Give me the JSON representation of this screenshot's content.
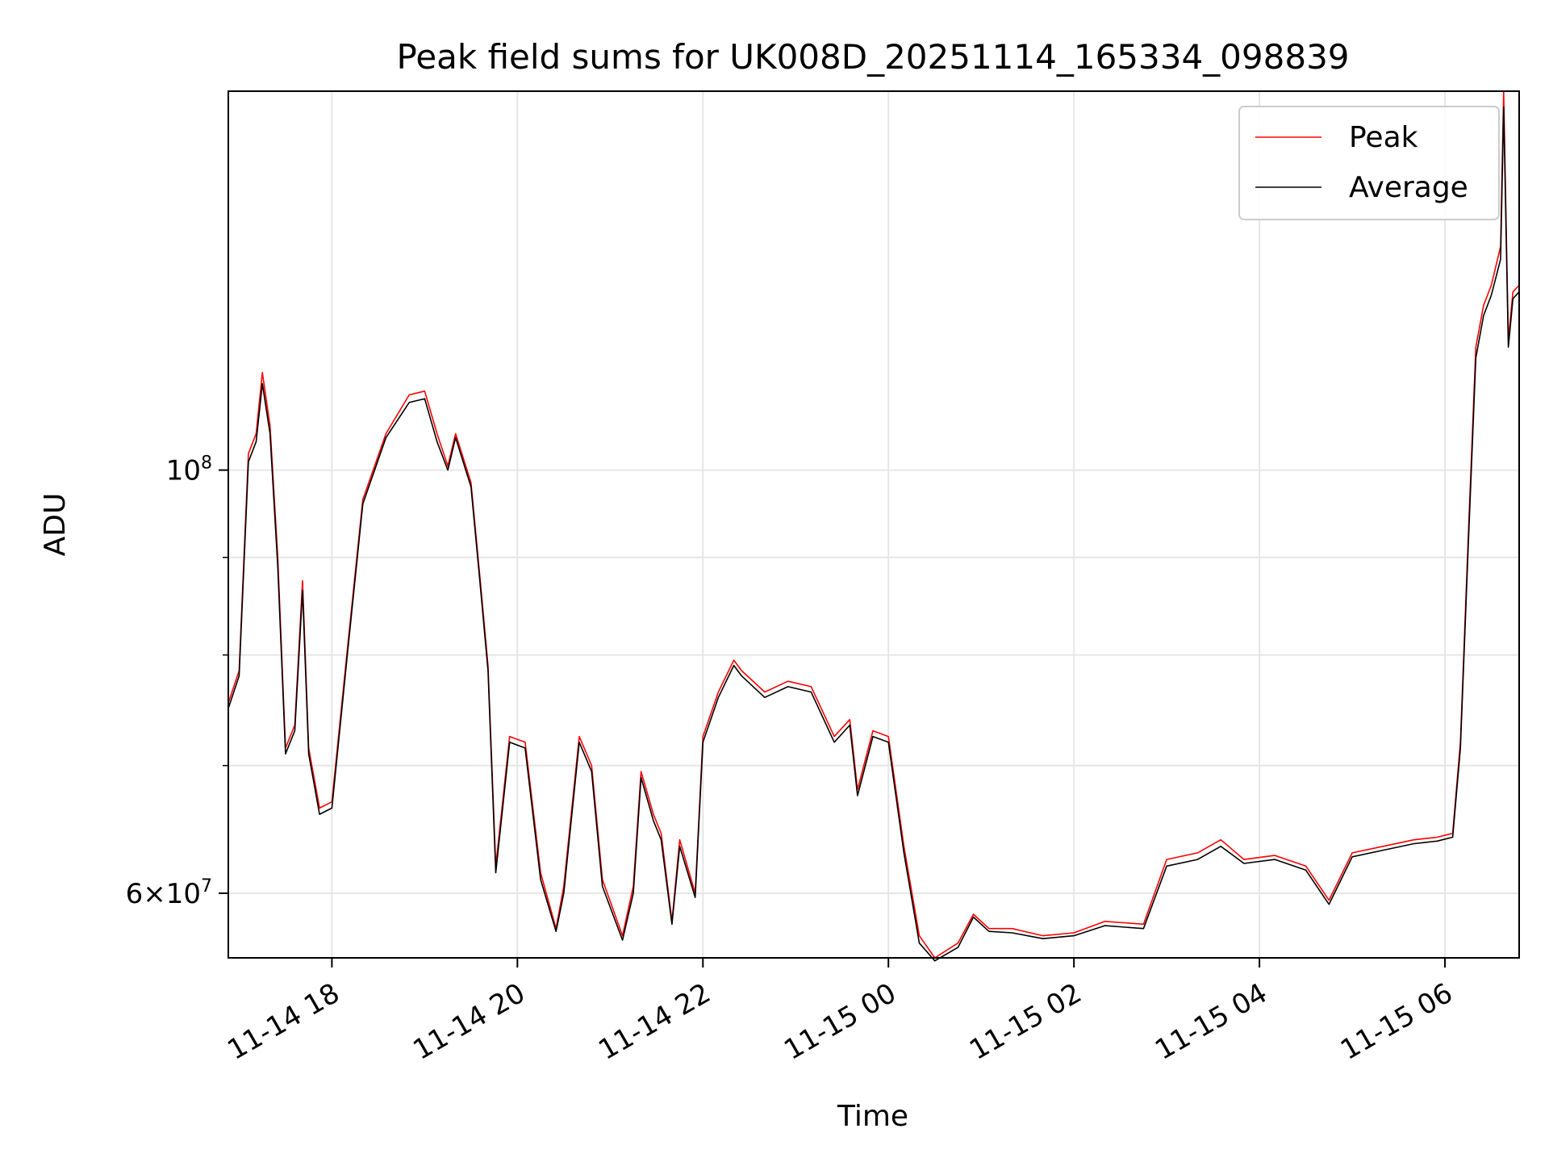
{
  "chart_data": {
    "type": "line",
    "title": "Peak field sums for UK008D_20251114_165334_098839",
    "xlabel": "Time",
    "ylabel": "ADU",
    "x_axis": {
      "scale": "time",
      "range": [
        "2025-11-14 16:53",
        "2025-11-15 06:48"
      ],
      "tick_labels": [
        "11-14 18",
        "11-14 20",
        "11-14 22",
        "11-15 00",
        "11-15 02",
        "11-15 04",
        "11-15 06"
      ],
      "tick_values": [
        "2025-11-14 18:00",
        "2025-11-14 20:00",
        "2025-11-14 22:00",
        "2025-11-15 00:00",
        "2025-11-15 02:00",
        "2025-11-15 04:00",
        "2025-11-15 06:00"
      ]
    },
    "y_axis": {
      "scale": "log",
      "range": [
        55500000,
        158000000
      ],
      "major_ticks": [
        {
          "value": 60000000,
          "mantissa": "6",
          "exponent": "7"
        },
        {
          "value": 100000000,
          "mantissa": "",
          "exponent": "8"
        }
      ],
      "minor_ticks": [
        70000000,
        80000000,
        90000000
      ]
    },
    "grid": true,
    "legend_position": "top-right",
    "series": [
      {
        "name": "Peak",
        "color": "#ff0000",
        "x": [
          "2025-11-14 16:53",
          "2025-11-14 17:00",
          "2025-11-14 17:06",
          "2025-11-14 17:11",
          "2025-11-14 17:15",
          "2025-11-14 17:20",
          "2025-11-14 17:25",
          "2025-11-14 17:30",
          "2025-11-14 17:36",
          "2025-11-14 17:41",
          "2025-11-14 17:45",
          "2025-11-14 17:52",
          "2025-11-14 18:00",
          "2025-11-14 18:10",
          "2025-11-14 18:20",
          "2025-11-14 18:35",
          "2025-11-14 18:50",
          "2025-11-14 19:00",
          "2025-11-14 19:08",
          "2025-11-14 19:15",
          "2025-11-14 19:20",
          "2025-11-14 19:30",
          "2025-11-14 19:36",
          "2025-11-14 19:41",
          "2025-11-14 19:46",
          "2025-11-14 19:55",
          "2025-11-14 20:05",
          "2025-11-14 20:15",
          "2025-11-14 20:25",
          "2025-11-14 20:30",
          "2025-11-14 20:40",
          "2025-11-14 20:48",
          "2025-11-14 20:55",
          "2025-11-14 21:08",
          "2025-11-14 21:15",
          "2025-11-14 21:20",
          "2025-11-14 21:28",
          "2025-11-14 21:33",
          "2025-11-14 21:40",
          "2025-11-14 21:45",
          "2025-11-14 21:55",
          "2025-11-14 22:00",
          "2025-11-14 22:10",
          "2025-11-14 22:20",
          "2025-11-14 22:25",
          "2025-11-14 22:40",
          "2025-11-14 22:55",
          "2025-11-14 23:10",
          "2025-11-14 23:25",
          "2025-11-14 23:35",
          "2025-11-14 23:40",
          "2025-11-14 23:50",
          "2025-11-15 00:00",
          "2025-11-15 00:10",
          "2025-11-15 00:20",
          "2025-11-15 00:30",
          "2025-11-15 00:45",
          "2025-11-15 00:55",
          "2025-11-15 01:05",
          "2025-11-15 01:20",
          "2025-11-15 01:40",
          "2025-11-15 02:00",
          "2025-11-15 02:20",
          "2025-11-15 02:45",
          "2025-11-15 03:00",
          "2025-11-15 03:20",
          "2025-11-15 03:35",
          "2025-11-15 03:50",
          "2025-11-15 04:10",
          "2025-11-15 04:30",
          "2025-11-15 04:45",
          "2025-11-15 05:00",
          "2025-11-15 05:20",
          "2025-11-15 05:40",
          "2025-11-15 05:55",
          "2025-11-15 06:05",
          "2025-11-15 06:10",
          "2025-11-15 06:15",
          "2025-11-15 06:20",
          "2025-11-15 06:25",
          "2025-11-15 06:30",
          "2025-11-15 06:36",
          "2025-11-15 06:38",
          "2025-11-15 06:41",
          "2025-11-15 06:44",
          "2025-11-15 06:48"
        ],
        "y": [
          75500000,
          78500000,
          102000000,
          104500000,
          112500000,
          105500000,
          90000000,
          71500000,
          73500000,
          87500000,
          71500000,
          66500000,
          67000000,
          80500000,
          96500000,
          104500000,
          109500000,
          110000000,
          104500000,
          100500000,
          104500000,
          98500000,
          87500000,
          79000000,
          62000000,
          72500000,
          72000000,
          61500000,
          57500000,
          60500000,
          72500000,
          70000000,
          61000000,
          57000000,
          60500000,
          69500000,
          66000000,
          64500000,
          58000000,
          64000000,
          60000000,
          72500000,
          76500000,
          79500000,
          78500000,
          76500000,
          77500000,
          77000000,
          72500000,
          74000000,
          68000000,
          73000000,
          72500000,
          63500000,
          57000000,
          55500000,
          56500000,
          58500000,
          57500000,
          57500000,
          57000000,
          57200000,
          58000000,
          57800000,
          62500000,
          63000000,
          64000000,
          62500000,
          62800000,
          62000000,
          59500000,
          63000000,
          63500000,
          64000000,
          64200000,
          64500000,
          72000000,
          92000000,
          116000000,
          122000000,
          125000000,
          131000000,
          158000000,
          117000000,
          124000000,
          125000000
        ]
      },
      {
        "name": "Average",
        "color": "#000000",
        "x": [
          "2025-11-14 16:53",
          "2025-11-14 17:00",
          "2025-11-14 17:06",
          "2025-11-14 17:11",
          "2025-11-14 17:15",
          "2025-11-14 17:20",
          "2025-11-14 17:25",
          "2025-11-14 17:30",
          "2025-11-14 17:36",
          "2025-11-14 17:41",
          "2025-11-14 17:45",
          "2025-11-14 17:52",
          "2025-11-14 18:00",
          "2025-11-14 18:10",
          "2025-11-14 18:20",
          "2025-11-14 18:35",
          "2025-11-14 18:50",
          "2025-11-14 19:00",
          "2025-11-14 19:08",
          "2025-11-14 19:15",
          "2025-11-14 19:20",
          "2025-11-14 19:30",
          "2025-11-14 19:36",
          "2025-11-14 19:41",
          "2025-11-14 19:46",
          "2025-11-14 19:55",
          "2025-11-14 20:05",
          "2025-11-14 20:15",
          "2025-11-14 20:25",
          "2025-11-14 20:30",
          "2025-11-14 20:40",
          "2025-11-14 20:48",
          "2025-11-14 20:55",
          "2025-11-14 21:08",
          "2025-11-14 21:15",
          "2025-11-14 21:20",
          "2025-11-14 21:28",
          "2025-11-14 21:33",
          "2025-11-14 21:40",
          "2025-11-14 21:45",
          "2025-11-14 21:55",
          "2025-11-14 22:00",
          "2025-11-14 22:10",
          "2025-11-14 22:20",
          "2025-11-14 22:25",
          "2025-11-14 22:40",
          "2025-11-14 22:55",
          "2025-11-14 23:10",
          "2025-11-14 23:25",
          "2025-11-14 23:35",
          "2025-11-14 23:40",
          "2025-11-14 23:50",
          "2025-11-15 00:00",
          "2025-11-15 00:10",
          "2025-11-15 00:20",
          "2025-11-15 00:30",
          "2025-11-15 00:45",
          "2025-11-15 00:55",
          "2025-11-15 01:05",
          "2025-11-15 01:20",
          "2025-11-15 01:40",
          "2025-11-15 02:00",
          "2025-11-15 02:20",
          "2025-11-15 02:45",
          "2025-11-15 03:00",
          "2025-11-15 03:20",
          "2025-11-15 03:35",
          "2025-11-15 03:50",
          "2025-11-15 04:10",
          "2025-11-15 04:30",
          "2025-11-15 04:45",
          "2025-11-15 05:00",
          "2025-11-15 05:20",
          "2025-11-15 05:40",
          "2025-11-15 05:55",
          "2025-11-15 06:05",
          "2025-11-15 06:10",
          "2025-11-15 06:15",
          "2025-11-15 06:20",
          "2025-11-15 06:25",
          "2025-11-15 06:30",
          "2025-11-15 06:36",
          "2025-11-15 06:38",
          "2025-11-15 06:41",
          "2025-11-15 06:44",
          "2025-11-15 06:48"
        ],
        "y": [
          75000000,
          78000000,
          101000000,
          103500000,
          111000000,
          104500000,
          89000000,
          71000000,
          73000000,
          86500000,
          71000000,
          66000000,
          66500000,
          80000000,
          96000000,
          104000000,
          108500000,
          109000000,
          103500000,
          100000000,
          104000000,
          98000000,
          87000000,
          78500000,
          61500000,
          72000000,
          71500000,
          61000000,
          57300000,
          60000000,
          72000000,
          69500000,
          60500000,
          56700000,
          60000000,
          69000000,
          65500000,
          64000000,
          57800000,
          63500000,
          59700000,
          72000000,
          76000000,
          79000000,
          78000000,
          76000000,
          77000000,
          76500000,
          72000000,
          73500000,
          67500000,
          72500000,
          72000000,
          63000000,
          56500000,
          55300000,
          56200000,
          58300000,
          57300000,
          57200000,
          56800000,
          57000000,
          57700000,
          57500000,
          62000000,
          62500000,
          63500000,
          62200000,
          62500000,
          61700000,
          59200000,
          62700000,
          63200000,
          63700000,
          63900000,
          64200000,
          71500000,
          91000000,
          114500000,
          120500000,
          123500000,
          129000000,
          155000000,
          116000000,
          123000000,
          124000000
        ]
      }
    ]
  }
}
